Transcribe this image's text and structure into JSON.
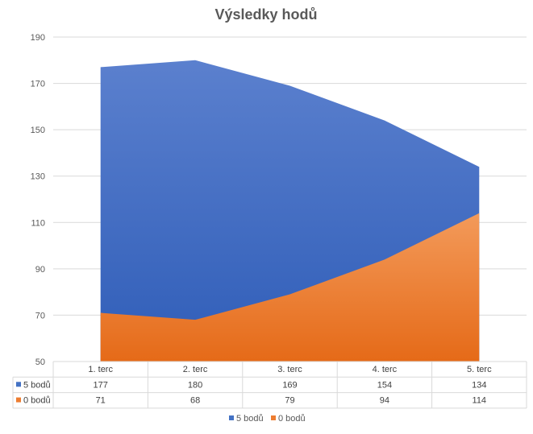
{
  "chart_data": {
    "type": "area",
    "title": "Výsledky hodů",
    "categories": [
      "1. terc",
      "2. terc",
      "3. terc",
      "4. terc",
      "5. terc"
    ],
    "series": [
      {
        "name": "5 bodů",
        "values": [
          177,
          180,
          169,
          154,
          134
        ],
        "color": "#4472C4"
      },
      {
        "name": "0 bodů",
        "values": [
          71,
          68,
          79,
          94,
          114
        ],
        "color": "#ED7D31"
      }
    ],
    "ylim": [
      50,
      190
    ],
    "yticks": [
      50,
      70,
      90,
      110,
      130,
      150,
      170,
      190
    ],
    "grid": true,
    "legend": "bottom",
    "data_table": true
  }
}
